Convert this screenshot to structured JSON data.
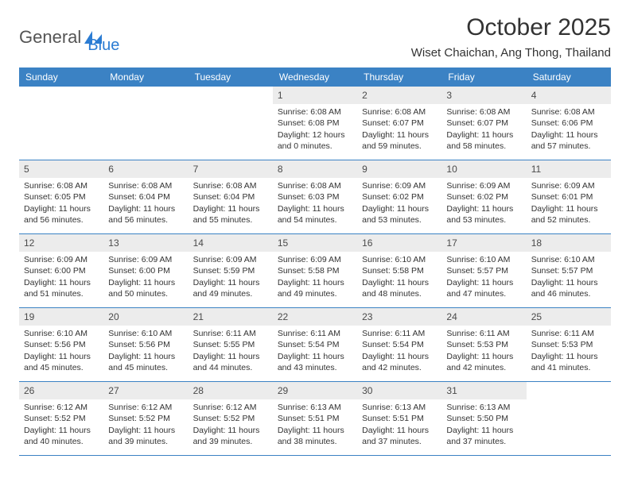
{
  "brand": {
    "part1": "General",
    "part2": "Blue",
    "icon_color": "#2b7cd3",
    "text_color_general": "#555555",
    "text_color_blue": "#2b7cd3"
  },
  "title": "October 2025",
  "location": "Wiset Chaichan, Ang Thong, Thailand",
  "colors": {
    "header_bg": "#3b82c4",
    "header_text": "#ffffff",
    "daynum_bg": "#ececec",
    "border": "#3b82c4",
    "text": "#333333"
  },
  "days_of_week": [
    "Sunday",
    "Monday",
    "Tuesday",
    "Wednesday",
    "Thursday",
    "Friday",
    "Saturday"
  ],
  "weeks": [
    [
      null,
      null,
      null,
      {
        "n": 1,
        "sunrise": "6:08 AM",
        "sunset": "6:08 PM",
        "dl_h": 12,
        "dl_m": 0
      },
      {
        "n": 2,
        "sunrise": "6:08 AM",
        "sunset": "6:07 PM",
        "dl_h": 11,
        "dl_m": 59
      },
      {
        "n": 3,
        "sunrise": "6:08 AM",
        "sunset": "6:07 PM",
        "dl_h": 11,
        "dl_m": 58
      },
      {
        "n": 4,
        "sunrise": "6:08 AM",
        "sunset": "6:06 PM",
        "dl_h": 11,
        "dl_m": 57
      }
    ],
    [
      {
        "n": 5,
        "sunrise": "6:08 AM",
        "sunset": "6:05 PM",
        "dl_h": 11,
        "dl_m": 56
      },
      {
        "n": 6,
        "sunrise": "6:08 AM",
        "sunset": "6:04 PM",
        "dl_h": 11,
        "dl_m": 56
      },
      {
        "n": 7,
        "sunrise": "6:08 AM",
        "sunset": "6:04 PM",
        "dl_h": 11,
        "dl_m": 55
      },
      {
        "n": 8,
        "sunrise": "6:08 AM",
        "sunset": "6:03 PM",
        "dl_h": 11,
        "dl_m": 54
      },
      {
        "n": 9,
        "sunrise": "6:09 AM",
        "sunset": "6:02 PM",
        "dl_h": 11,
        "dl_m": 53
      },
      {
        "n": 10,
        "sunrise": "6:09 AM",
        "sunset": "6:02 PM",
        "dl_h": 11,
        "dl_m": 53
      },
      {
        "n": 11,
        "sunrise": "6:09 AM",
        "sunset": "6:01 PM",
        "dl_h": 11,
        "dl_m": 52
      }
    ],
    [
      {
        "n": 12,
        "sunrise": "6:09 AM",
        "sunset": "6:00 PM",
        "dl_h": 11,
        "dl_m": 51
      },
      {
        "n": 13,
        "sunrise": "6:09 AM",
        "sunset": "6:00 PM",
        "dl_h": 11,
        "dl_m": 50
      },
      {
        "n": 14,
        "sunrise": "6:09 AM",
        "sunset": "5:59 PM",
        "dl_h": 11,
        "dl_m": 49
      },
      {
        "n": 15,
        "sunrise": "6:09 AM",
        "sunset": "5:58 PM",
        "dl_h": 11,
        "dl_m": 49
      },
      {
        "n": 16,
        "sunrise": "6:10 AM",
        "sunset": "5:58 PM",
        "dl_h": 11,
        "dl_m": 48
      },
      {
        "n": 17,
        "sunrise": "6:10 AM",
        "sunset": "5:57 PM",
        "dl_h": 11,
        "dl_m": 47
      },
      {
        "n": 18,
        "sunrise": "6:10 AM",
        "sunset": "5:57 PM",
        "dl_h": 11,
        "dl_m": 46
      }
    ],
    [
      {
        "n": 19,
        "sunrise": "6:10 AM",
        "sunset": "5:56 PM",
        "dl_h": 11,
        "dl_m": 45
      },
      {
        "n": 20,
        "sunrise": "6:10 AM",
        "sunset": "5:56 PM",
        "dl_h": 11,
        "dl_m": 45
      },
      {
        "n": 21,
        "sunrise": "6:11 AM",
        "sunset": "5:55 PM",
        "dl_h": 11,
        "dl_m": 44
      },
      {
        "n": 22,
        "sunrise": "6:11 AM",
        "sunset": "5:54 PM",
        "dl_h": 11,
        "dl_m": 43
      },
      {
        "n": 23,
        "sunrise": "6:11 AM",
        "sunset": "5:54 PM",
        "dl_h": 11,
        "dl_m": 42
      },
      {
        "n": 24,
        "sunrise": "6:11 AM",
        "sunset": "5:53 PM",
        "dl_h": 11,
        "dl_m": 42
      },
      {
        "n": 25,
        "sunrise": "6:11 AM",
        "sunset": "5:53 PM",
        "dl_h": 11,
        "dl_m": 41
      }
    ],
    [
      {
        "n": 26,
        "sunrise": "6:12 AM",
        "sunset": "5:52 PM",
        "dl_h": 11,
        "dl_m": 40
      },
      {
        "n": 27,
        "sunrise": "6:12 AM",
        "sunset": "5:52 PM",
        "dl_h": 11,
        "dl_m": 39
      },
      {
        "n": 28,
        "sunrise": "6:12 AM",
        "sunset": "5:52 PM",
        "dl_h": 11,
        "dl_m": 39
      },
      {
        "n": 29,
        "sunrise": "6:13 AM",
        "sunset": "5:51 PM",
        "dl_h": 11,
        "dl_m": 38
      },
      {
        "n": 30,
        "sunrise": "6:13 AM",
        "sunset": "5:51 PM",
        "dl_h": 11,
        "dl_m": 37
      },
      {
        "n": 31,
        "sunrise": "6:13 AM",
        "sunset": "5:50 PM",
        "dl_h": 11,
        "dl_m": 37
      },
      null
    ]
  ],
  "labels": {
    "sunrise": "Sunrise:",
    "sunset": "Sunset:",
    "daylight": "Daylight:",
    "hours": "hours",
    "and": "and",
    "minutes": "minutes."
  }
}
